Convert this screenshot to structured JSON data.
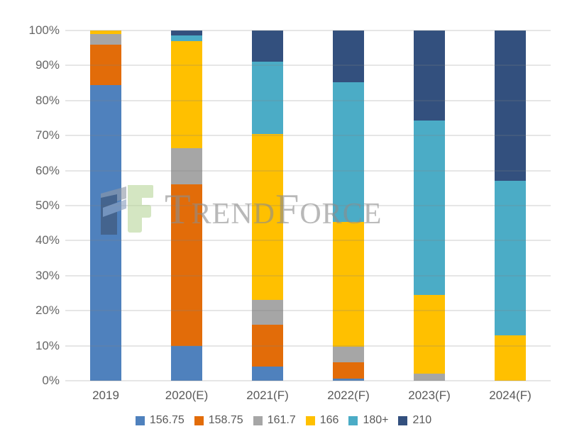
{
  "watermark": {
    "text": "TrendForce"
  },
  "chart_data": {
    "type": "bar",
    "variant": "stacked-100-percent",
    "title": "",
    "xlabel": "",
    "ylabel": "",
    "categories": [
      "2019",
      "2020(E)",
      "2021(F)",
      "2022(F)",
      "2023(F)",
      "2024(F)"
    ],
    "series": [
      {
        "name": "156.75",
        "color": "#4F81BD",
        "values": [
          84.5,
          10,
          4,
          0.7,
          0,
          0
        ]
      },
      {
        "name": "158.75",
        "color": "#E26C09",
        "values": [
          11.5,
          46,
          12,
          4.6,
          0,
          0
        ]
      },
      {
        "name": "161.7",
        "color": "#A6A6A6",
        "values": [
          3,
          10.5,
          7,
          4.5,
          2,
          0
        ]
      },
      {
        "name": "166",
        "color": "#FFC000",
        "values": [
          1,
          30.5,
          47.5,
          35.5,
          22.5,
          13
        ]
      },
      {
        "name": "180+",
        "color": "#4BACC6",
        "values": [
          0,
          1.5,
          20.5,
          39.9,
          49.8,
          44
        ]
      },
      {
        "name": "210",
        "color": "#33507E",
        "values": [
          0,
          1.5,
          9,
          14.8,
          25.7,
          43
        ]
      }
    ],
    "unit": "%",
    "ylim": [
      0,
      100
    ],
    "y_ticks": [
      "0%",
      "10%",
      "20%",
      "30%",
      "40%",
      "50%",
      "60%",
      "70%",
      "80%",
      "90%",
      "100%"
    ],
    "grid": true,
    "legend_position": "bottom",
    "gridline_color": "#DCDCDC",
    "axis_text_color": "#595959"
  }
}
